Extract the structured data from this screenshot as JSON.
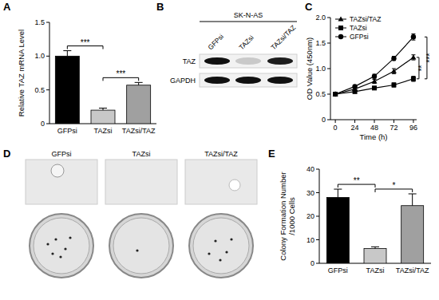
{
  "panel_labels": [
    "A",
    "B",
    "C",
    "D",
    "E"
  ],
  "chart_data": [
    {
      "type": "bar",
      "categories": [
        "GFPsi",
        "TAZsi",
        "TAZsi/TAZ"
      ],
      "values": [
        1.0,
        0.2,
        0.57
      ],
      "errors": [
        0.08,
        0.03,
        0.04
      ],
      "colors": [
        "#000000",
        "#c8c8c8",
        "#a0a0a0"
      ],
      "y_label": "Relative TAZ mRNA Level",
      "ylim": [
        0,
        1.5
      ],
      "yticks": [
        0,
        0.5,
        {
          "value": 1.0,
          "label": "1.0"
        },
        1.5
      ],
      "annotations": [
        {
          "text": "***",
          "between": [
            "GFPsi",
            "TAZsi"
          ]
        },
        {
          "text": "***",
          "between": [
            "TAZsi",
            "TAZsi/TAZ"
          ]
        }
      ]
    },
    {
      "type": "line",
      "x": [
        0,
        24,
        48,
        72,
        96
      ],
      "xlim": [
        -6,
        100
      ],
      "xticks": [
        0,
        24,
        48,
        72,
        96
      ],
      "ylim": [
        0,
        2
      ],
      "yticks": [
        0,
        0.5,
        {
          "value": 1,
          "label": "1.0"
        },
        1.5,
        {
          "value": 2,
          "label": "2.0"
        }
      ],
      "x_label": "Time (h)",
      "y_label": "OD Value (450nm)",
      "legend": "top-left",
      "series": [
        {
          "name": "TAZsi/TAZ",
          "color": "#000000",
          "marker": "triangle",
          "values": [
            0.5,
            0.6,
            0.75,
            0.95,
            1.22
          ],
          "errors": [
            0.03,
            0.03,
            0.04,
            0.05,
            0.05
          ]
        },
        {
          "name": "TAZsi",
          "color": "#000000",
          "marker": "square",
          "values": [
            0.5,
            0.55,
            0.62,
            0.68,
            0.8
          ],
          "errors": [
            0.03,
            0.03,
            0.03,
            0.04,
            0.05
          ]
        },
        {
          "name": "GFPsi",
          "color": "#000000",
          "marker": "circle",
          "values": [
            0.5,
            0.65,
            0.85,
            1.2,
            1.62
          ],
          "errors": [
            0.03,
            0.03,
            0.04,
            0.04,
            0.06
          ]
        }
      ],
      "annotations": [
        {
          "text": "**",
          "between": [
            "TAZsi/TAZ",
            "TAZsi"
          ]
        },
        {
          "text": "***",
          "between": [
            "GFPsi",
            "TAZsi"
          ]
        }
      ]
    },
    {
      "type": "bar",
      "categories": [
        "GFPsi",
        "TAZsi",
        "TAZsi/TAZ"
      ],
      "values": [
        28,
        6.3,
        24.5
      ],
      "errors": [
        3.5,
        0.7,
        5
      ],
      "colors": [
        "#000000",
        "#c8c8c8",
        "#a0a0a0"
      ],
      "y_label": "Colony Formation Number\n/1000 Cells",
      "ylim": [
        0,
        40
      ],
      "yticks": [
        0,
        10,
        20,
        30,
        40
      ],
      "annotations": [
        {
          "text": "**",
          "between": [
            "GFPsi",
            "TAZsi"
          ]
        },
        {
          "text": "*",
          "between": [
            "TAZsi",
            "TAZsi/TAZ"
          ]
        }
      ]
    }
  ],
  "blot": {
    "cell_line": "SK-N-AS",
    "lanes": [
      "GFPsi",
      "TAZsi",
      "TAZsi/TAZ"
    ],
    "rows": [
      "TAZ",
      "GAPDH"
    ]
  },
  "images": {
    "lanes": [
      "GFPsi",
      "TAZsi",
      "TAZsi/TAZ"
    ]
  }
}
